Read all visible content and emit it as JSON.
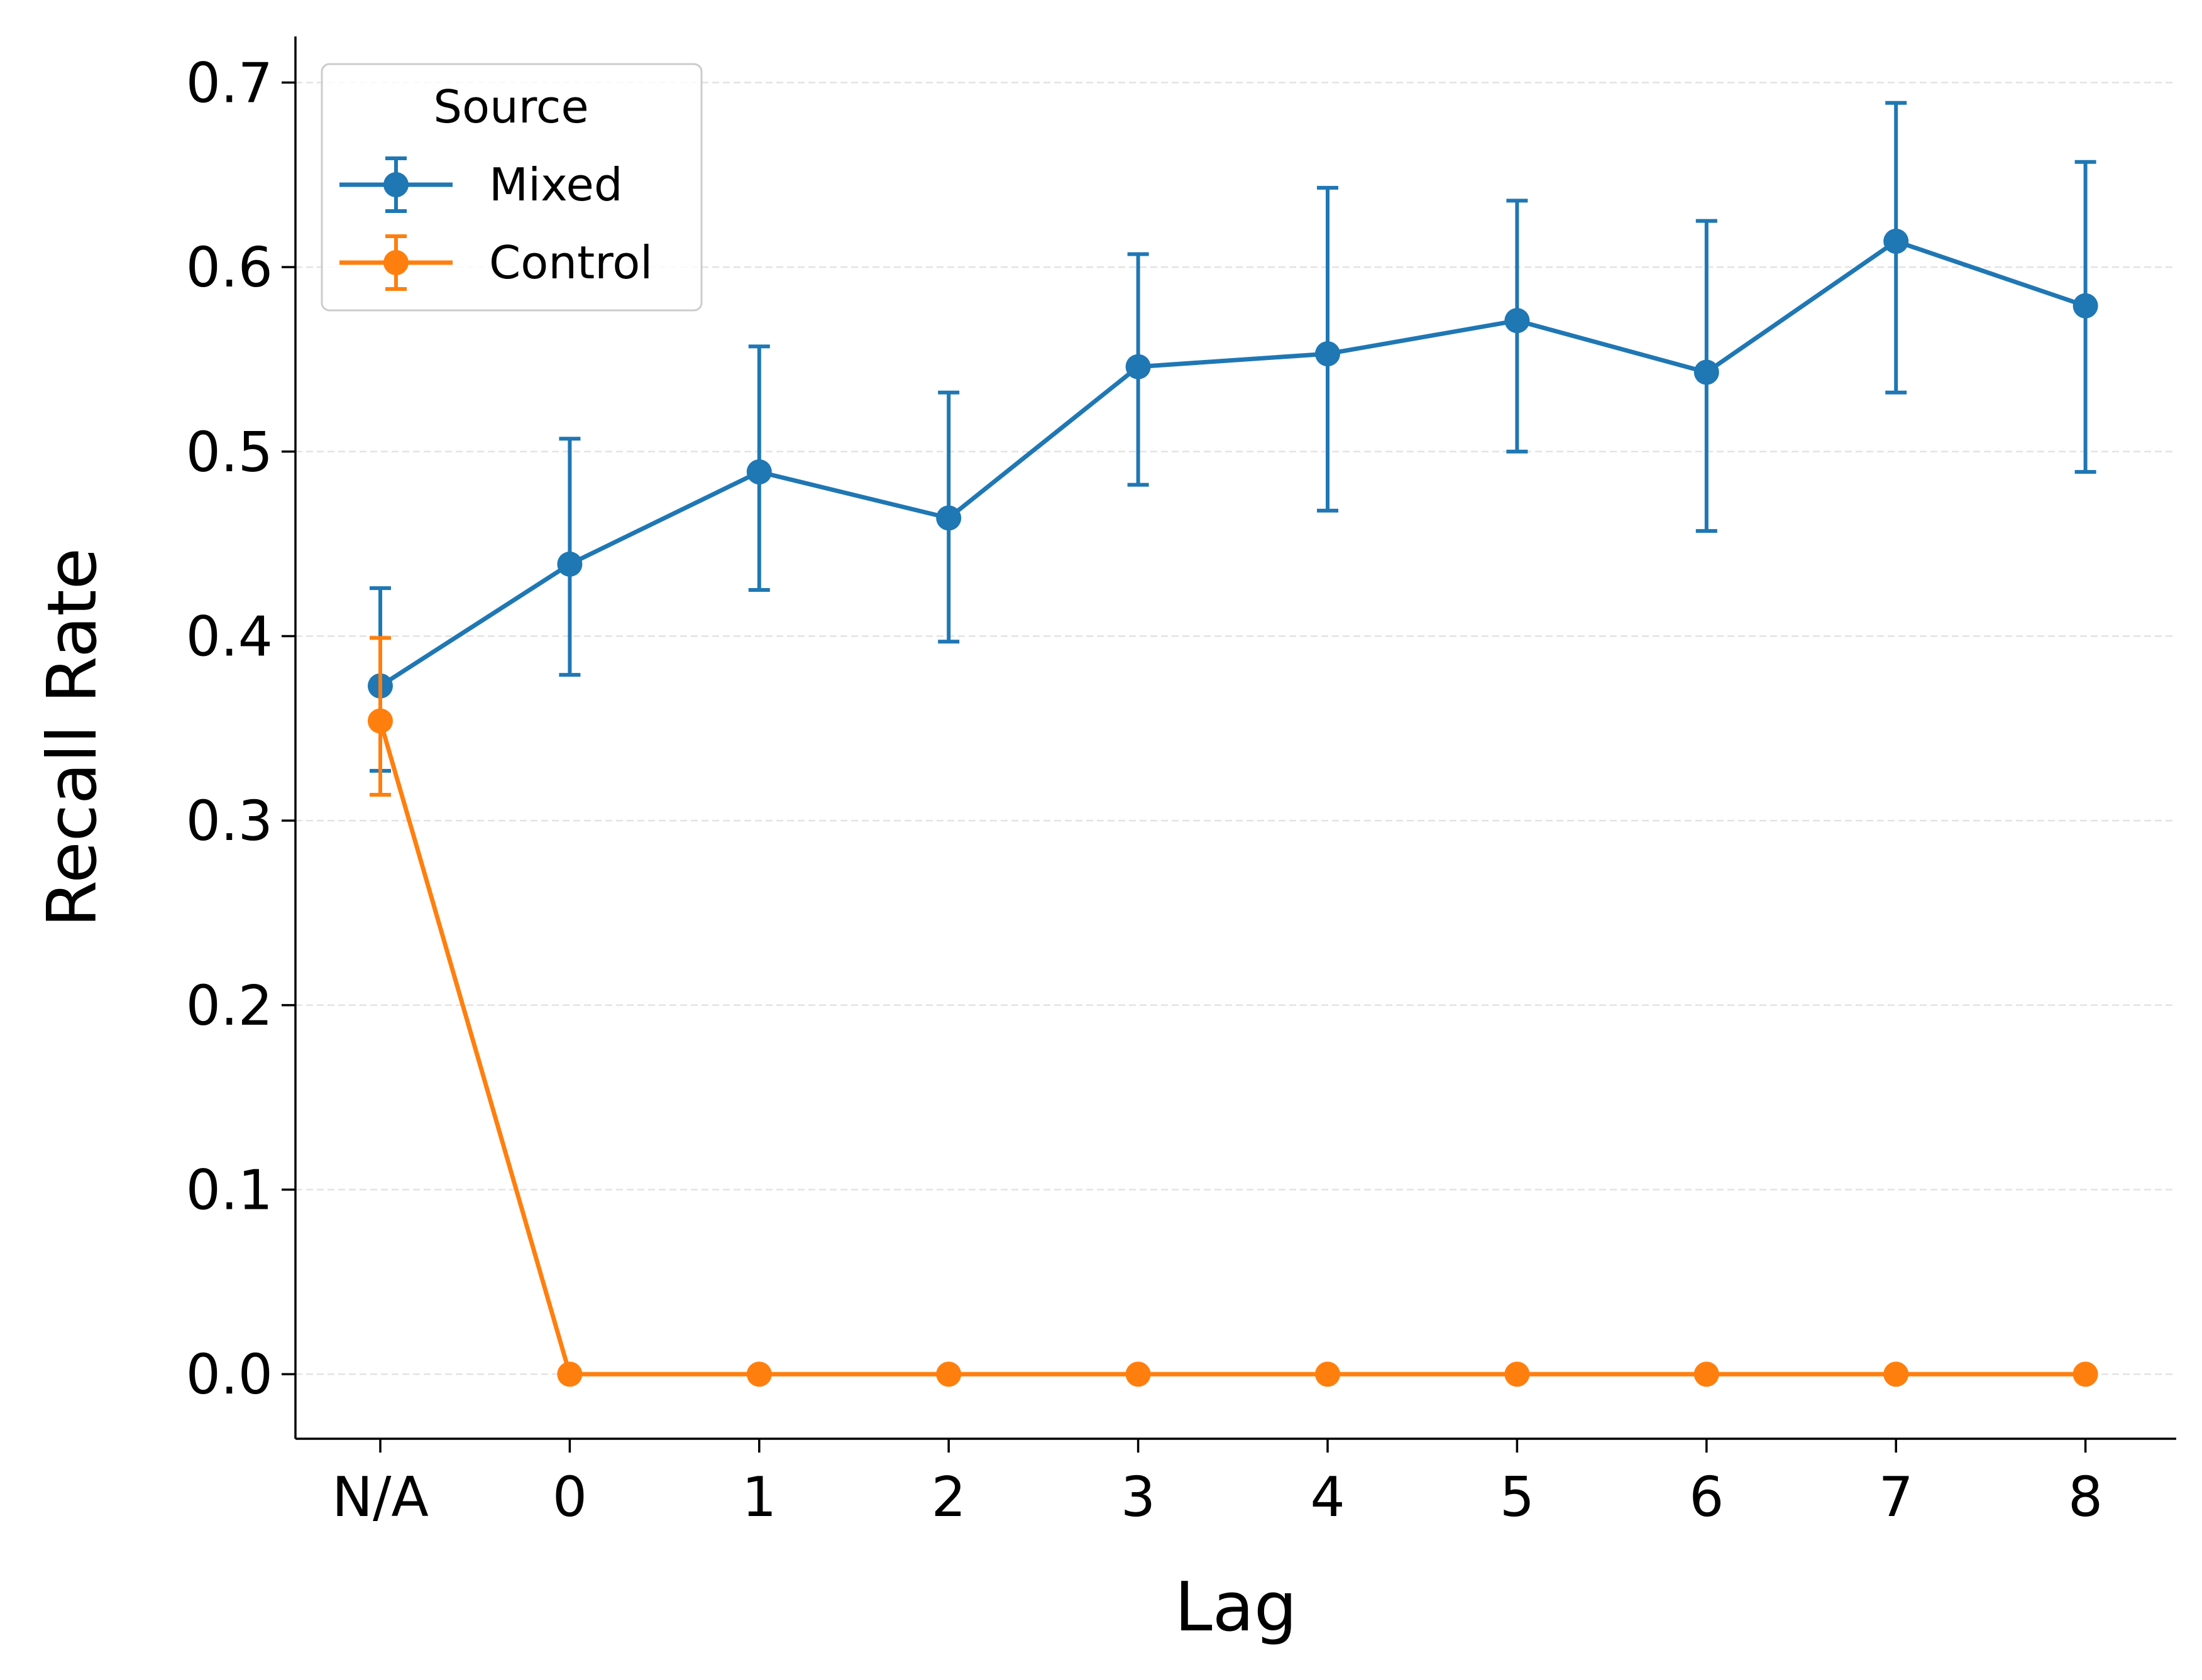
{
  "chart_data": {
    "type": "line",
    "xlabel": "Lag",
    "ylabel": "Recall Rate",
    "categories": [
      "N/A",
      "0",
      "1",
      "2",
      "3",
      "4",
      "5",
      "6",
      "7",
      "8"
    ],
    "ylim": [
      -0.035,
      0.725
    ],
    "yticks": [
      "0.0",
      "0.1",
      "0.2",
      "0.3",
      "0.4",
      "0.5",
      "0.6",
      "0.7"
    ],
    "grid": "horizontal dashed",
    "legend": {
      "title": "Source",
      "placement": "top-left"
    },
    "series": [
      {
        "name": "Mixed",
        "color": "#1f77b4",
        "values": [
          0.373,
          0.439,
          0.489,
          0.464,
          0.546,
          0.553,
          0.571,
          0.543,
          0.614,
          0.579
        ],
        "err_low": [
          0.327,
          0.379,
          0.425,
          0.397,
          0.482,
          0.468,
          0.5,
          0.457,
          0.532,
          0.489
        ],
        "err_high": [
          0.426,
          0.507,
          0.557,
          0.532,
          0.607,
          0.643,
          0.636,
          0.625,
          0.689,
          0.657
        ]
      },
      {
        "name": "Control",
        "color": "#ff7f0e",
        "values": [
          0.354,
          0,
          0,
          0,
          0,
          0,
          0,
          0,
          0,
          0
        ],
        "err_low": [
          0.314,
          0,
          0,
          0,
          0,
          0,
          0,
          0,
          0,
          0
        ],
        "err_high": [
          0.399,
          0,
          0,
          0,
          0,
          0,
          0,
          0,
          0,
          0
        ]
      }
    ]
  }
}
